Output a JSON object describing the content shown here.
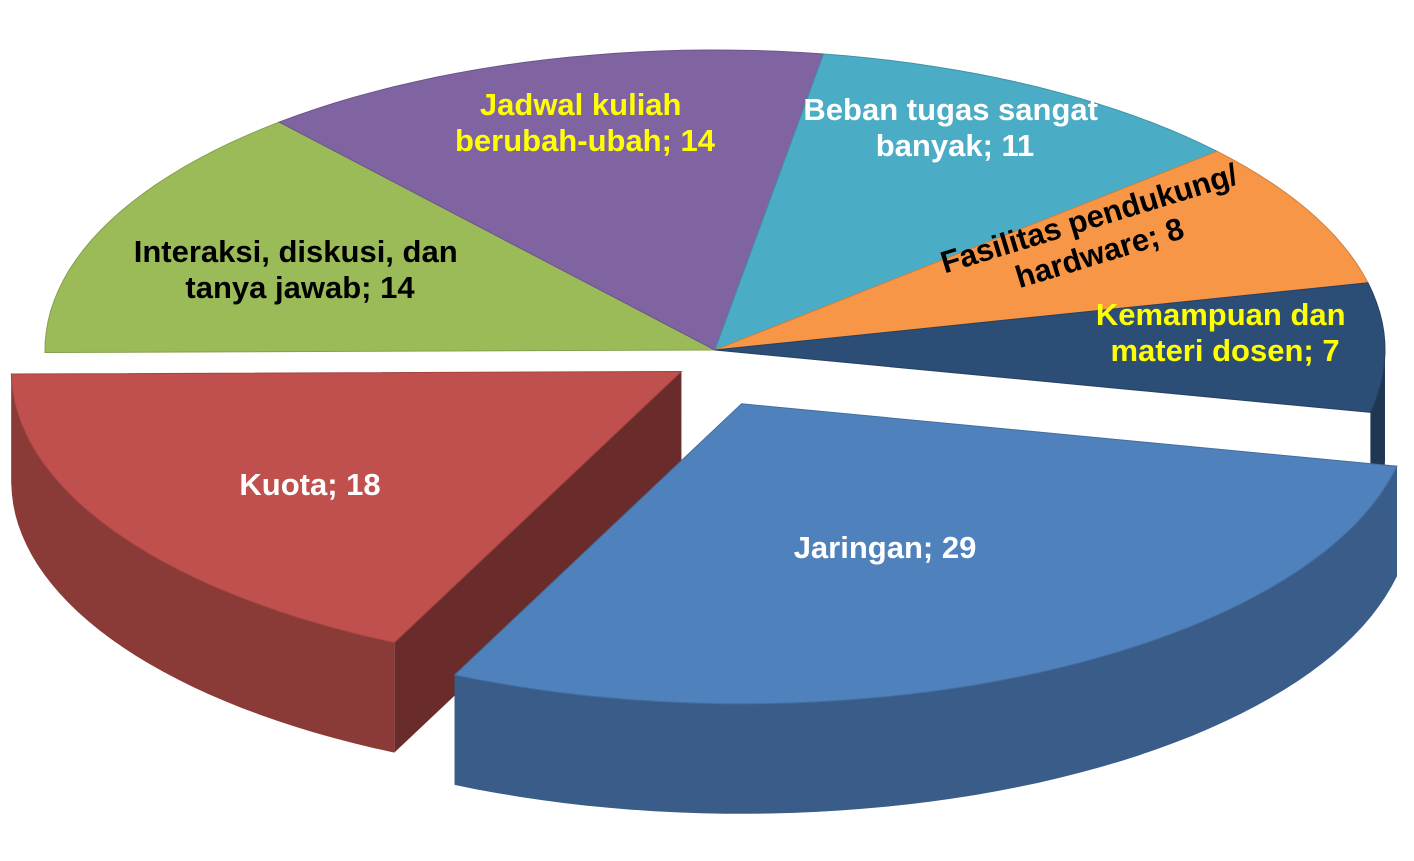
{
  "chart_data": {
    "type": "pie",
    "values": [
      29,
      18,
      14,
      14,
      11,
      8,
      7
    ],
    "value_labels": [
      "Jaringan; 29",
      "Kuota; 18",
      "Interaksi, diskusi, dan tanya jawab; 14",
      "Jadwal kuliah berubah-ubah; 14",
      "Beban tugas sangat banyak; 11",
      "Fasilitas pendukung/hardware; 8",
      "Kemampuan dan materi dosen; 7"
    ],
    "colors": [
      "#4f81bd",
      "#c0504d",
      "#9bbb59",
      "#8064a2",
      "#4bacc6",
      "#f79646",
      "#2c4d75"
    ],
    "label_colors": [
      "#ffffff",
      "#ffffff",
      "#000000",
      "#ffff00",
      "#ffffff",
      "#000000",
      "#ffff00"
    ]
  }
}
